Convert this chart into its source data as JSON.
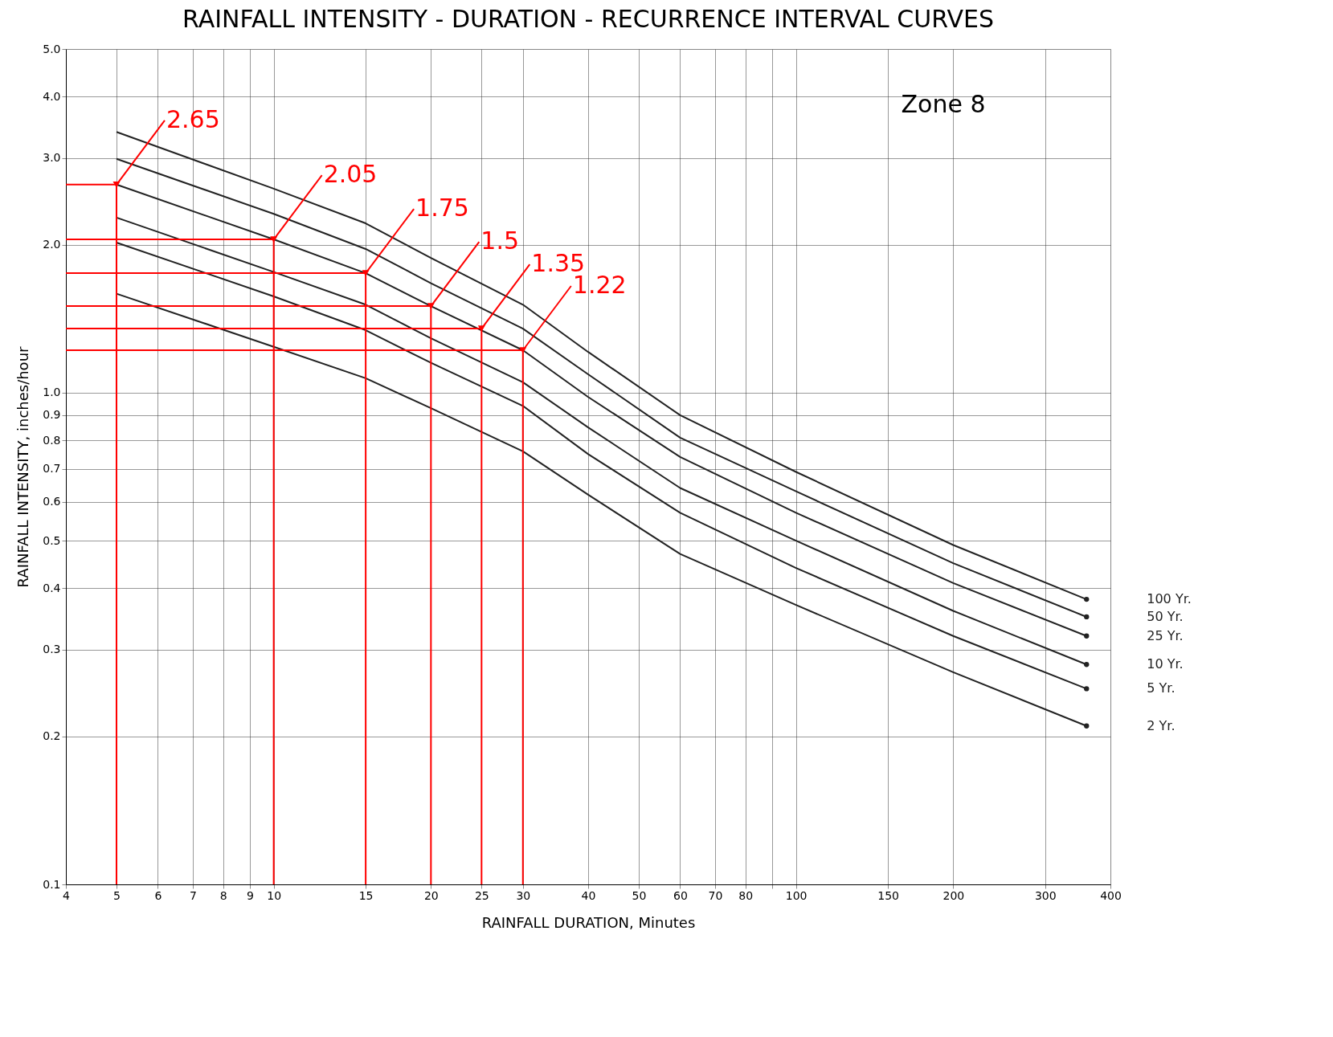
{
  "chart_data": {
    "type": "line",
    "title": "RAINFALL INTENSITY - DURATION - RECURRENCE INTERVAL CURVES",
    "xlabel": "RAINFALL DURATION, Minutes",
    "ylabel": "RAINFALL INTENSITY, inches/hour",
    "x": [
      5,
      10,
      15,
      20,
      30,
      40,
      60,
      100,
      200,
      360
    ],
    "series": [
      {
        "name": "100 Yr.",
        "color": "#222222",
        "values": [
          3.39,
          2.6,
          2.21,
          1.88,
          1.51,
          1.21,
          0.9,
          0.69,
          0.49,
          0.38
        ]
      },
      {
        "name": "50 Yr.",
        "color": "#222222",
        "values": [
          2.99,
          2.31,
          1.96,
          1.67,
          1.35,
          1.09,
          0.81,
          0.63,
          0.45,
          0.35
        ]
      },
      {
        "name": "25 Yr.",
        "color": "#222222",
        "values": [
          2.65,
          2.05,
          1.75,
          1.5,
          1.22,
          0.98,
          0.74,
          0.57,
          0.41,
          0.32
        ]
      },
      {
        "name": "10 Yr.",
        "color": "#222222",
        "values": [
          2.27,
          1.76,
          1.51,
          1.29,
          1.05,
          0.85,
          0.64,
          0.5,
          0.36,
          0.28
        ]
      },
      {
        "name": "5 Yr.",
        "color": "#222222",
        "values": [
          2.02,
          1.57,
          1.34,
          1.15,
          0.94,
          0.75,
          0.57,
          0.44,
          0.32,
          0.25
        ]
      },
      {
        "name": "2 Yr.",
        "color": "#222222",
        "values": [
          1.59,
          1.24,
          1.07,
          0.93,
          0.76,
          0.62,
          0.47,
          0.37,
          0.27,
          0.21
        ]
      },
      {
        "type": "line",
        "color": "#ff0000",
        "x": [
          4,
          5,
          5
        ],
        "values": [
          2.65,
          2.65,
          0.1
        ]
      },
      {
        "type": "line",
        "color": "#ff0000",
        "x": [
          4,
          10,
          10
        ],
        "values": [
          2.05,
          2.05,
          0.1
        ]
      },
      {
        "type": "line",
        "color": "#ff0000",
        "x": [
          4,
          15,
          15
        ],
        "values": [
          1.75,
          1.75,
          0.1
        ]
      },
      {
        "type": "line",
        "color": "#ff0000",
        "x": [
          4,
          20,
          20
        ],
        "values": [
          1.5,
          1.5,
          0.1
        ]
      },
      {
        "type": "line",
        "color": "#ff0000",
        "x": [
          4,
          25,
          25
        ],
        "values": [
          1.35,
          1.35,
          0.1
        ]
      },
      {
        "type": "line",
        "color": "#ff0000",
        "x": [
          4,
          30,
          30
        ],
        "values": [
          1.22,
          1.22,
          0.1
        ]
      }
    ],
    "log": "xy",
    "xlim": [
      4,
      400
    ],
    "ylim": [
      0.1,
      5
    ],
    "xticks": [
      4,
      5,
      6,
      7,
      8,
      9,
      10,
      15,
      20,
      25,
      30,
      40,
      50,
      60,
      70,
      80,
      {
        "value": 90,
        "label": null
      },
      100,
      150,
      200,
      300,
      400
    ],
    "yticks": [
      0.1,
      0.2,
      0.3,
      0.4,
      0.5,
      0.6,
      0.7,
      0.8,
      0.9,
      {
        "value": 1,
        "label": "1.0"
      },
      {
        "value": 2,
        "label": "2.0"
      },
      {
        "value": 3,
        "label": "3.0"
      },
      {
        "value": 4,
        "label": "4.0"
      },
      {
        "value": 5,
        "label": "5.0"
      }
    ],
    "grid": true,
    "annotations": [
      {
        "text": "2.65",
        "x": 5,
        "y": 2.65
      },
      {
        "text": "2.05",
        "x": 10,
        "y": 2.05
      },
      {
        "text": "1.75",
        "x": 15,
        "y": 1.75
      },
      {
        "text": "1.5",
        "x": 20,
        "y": 1.5
      },
      {
        "text": "1.35",
        "x": 25,
        "y": 1.35
      },
      {
        "text": "1.22",
        "x": 30,
        "y": 1.22
      },
      "Zone 8"
    ]
  }
}
